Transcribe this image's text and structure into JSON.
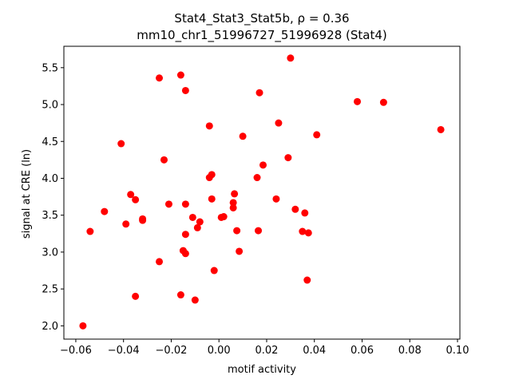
{
  "chart_data": {
    "type": "scatter",
    "title_line1": "Stat4_Stat3_Stat5b, ρ = 0.36",
    "title_line2": "mm10_chr1_51996727_51996928 (Stat4)",
    "xlabel": "motif activity",
    "ylabel": "signal at CRE (ln)",
    "xlim": [
      -0.065,
      0.101
    ],
    "ylim": [
      1.82,
      5.79
    ],
    "xticks": [
      -0.06,
      -0.04,
      -0.02,
      0.0,
      0.02,
      0.04,
      0.06,
      0.08,
      0.1
    ],
    "xtick_labels": [
      "−0.06",
      "−0.04",
      "−0.02",
      "0.00",
      "0.02",
      "0.04",
      "0.06",
      "0.08",
      "0.10"
    ],
    "yticks": [
      2.0,
      2.5,
      3.0,
      3.5,
      4.0,
      4.5,
      5.0,
      5.5
    ],
    "ytick_labels": [
      "2.0",
      "2.5",
      "3.0",
      "3.5",
      "4.0",
      "4.5",
      "5.0",
      "5.5"
    ],
    "marker_color": "#ff0000",
    "points": [
      {
        "x": -0.057,
        "y": 2.0
      },
      {
        "x": -0.054,
        "y": 3.28
      },
      {
        "x": -0.048,
        "y": 3.55
      },
      {
        "x": -0.041,
        "y": 4.47
      },
      {
        "x": -0.039,
        "y": 3.38
      },
      {
        "x": -0.037,
        "y": 3.78
      },
      {
        "x": -0.035,
        "y": 3.71
      },
      {
        "x": -0.035,
        "y": 2.4
      },
      {
        "x": -0.032,
        "y": 3.45
      },
      {
        "x": -0.032,
        "y": 3.43
      },
      {
        "x": -0.025,
        "y": 5.36
      },
      {
        "x": -0.025,
        "y": 2.87
      },
      {
        "x": -0.023,
        "y": 4.25
      },
      {
        "x": -0.021,
        "y": 3.65
      },
      {
        "x": -0.016,
        "y": 5.4
      },
      {
        "x": -0.016,
        "y": 2.42
      },
      {
        "x": -0.015,
        "y": 3.02
      },
      {
        "x": -0.014,
        "y": 5.19
      },
      {
        "x": -0.014,
        "y": 3.65
      },
      {
        "x": -0.014,
        "y": 3.24
      },
      {
        "x": -0.014,
        "y": 2.98
      },
      {
        "x": -0.011,
        "y": 3.47
      },
      {
        "x": -0.01,
        "y": 2.35
      },
      {
        "x": -0.009,
        "y": 3.33
      },
      {
        "x": -0.008,
        "y": 3.41
      },
      {
        "x": -0.004,
        "y": 4.71
      },
      {
        "x": -0.004,
        "y": 4.01
      },
      {
        "x": -0.003,
        "y": 4.05
      },
      {
        "x": -0.003,
        "y": 3.72
      },
      {
        "x": -0.002,
        "y": 2.75
      },
      {
        "x": 0.001,
        "y": 3.47
      },
      {
        "x": 0.002,
        "y": 3.48
      },
      {
        "x": 0.006,
        "y": 3.67
      },
      {
        "x": 0.006,
        "y": 3.6
      },
      {
        "x": 0.0065,
        "y": 3.79
      },
      {
        "x": 0.0075,
        "y": 3.29
      },
      {
        "x": 0.0085,
        "y": 3.01
      },
      {
        "x": 0.01,
        "y": 4.57
      },
      {
        "x": 0.016,
        "y": 4.01
      },
      {
        "x": 0.0165,
        "y": 3.29
      },
      {
        "x": 0.017,
        "y": 5.16
      },
      {
        "x": 0.0185,
        "y": 4.18
      },
      {
        "x": 0.024,
        "y": 3.72
      },
      {
        "x": 0.025,
        "y": 4.75
      },
      {
        "x": 0.029,
        "y": 4.28
      },
      {
        "x": 0.03,
        "y": 5.63
      },
      {
        "x": 0.032,
        "y": 3.58
      },
      {
        "x": 0.035,
        "y": 3.28
      },
      {
        "x": 0.036,
        "y": 3.53
      },
      {
        "x": 0.037,
        "y": 2.62
      },
      {
        "x": 0.0375,
        "y": 3.26
      },
      {
        "x": 0.041,
        "y": 4.59
      },
      {
        "x": 0.058,
        "y": 5.04
      },
      {
        "x": 0.069,
        "y": 5.03
      },
      {
        "x": 0.093,
        "y": 4.66
      }
    ]
  }
}
